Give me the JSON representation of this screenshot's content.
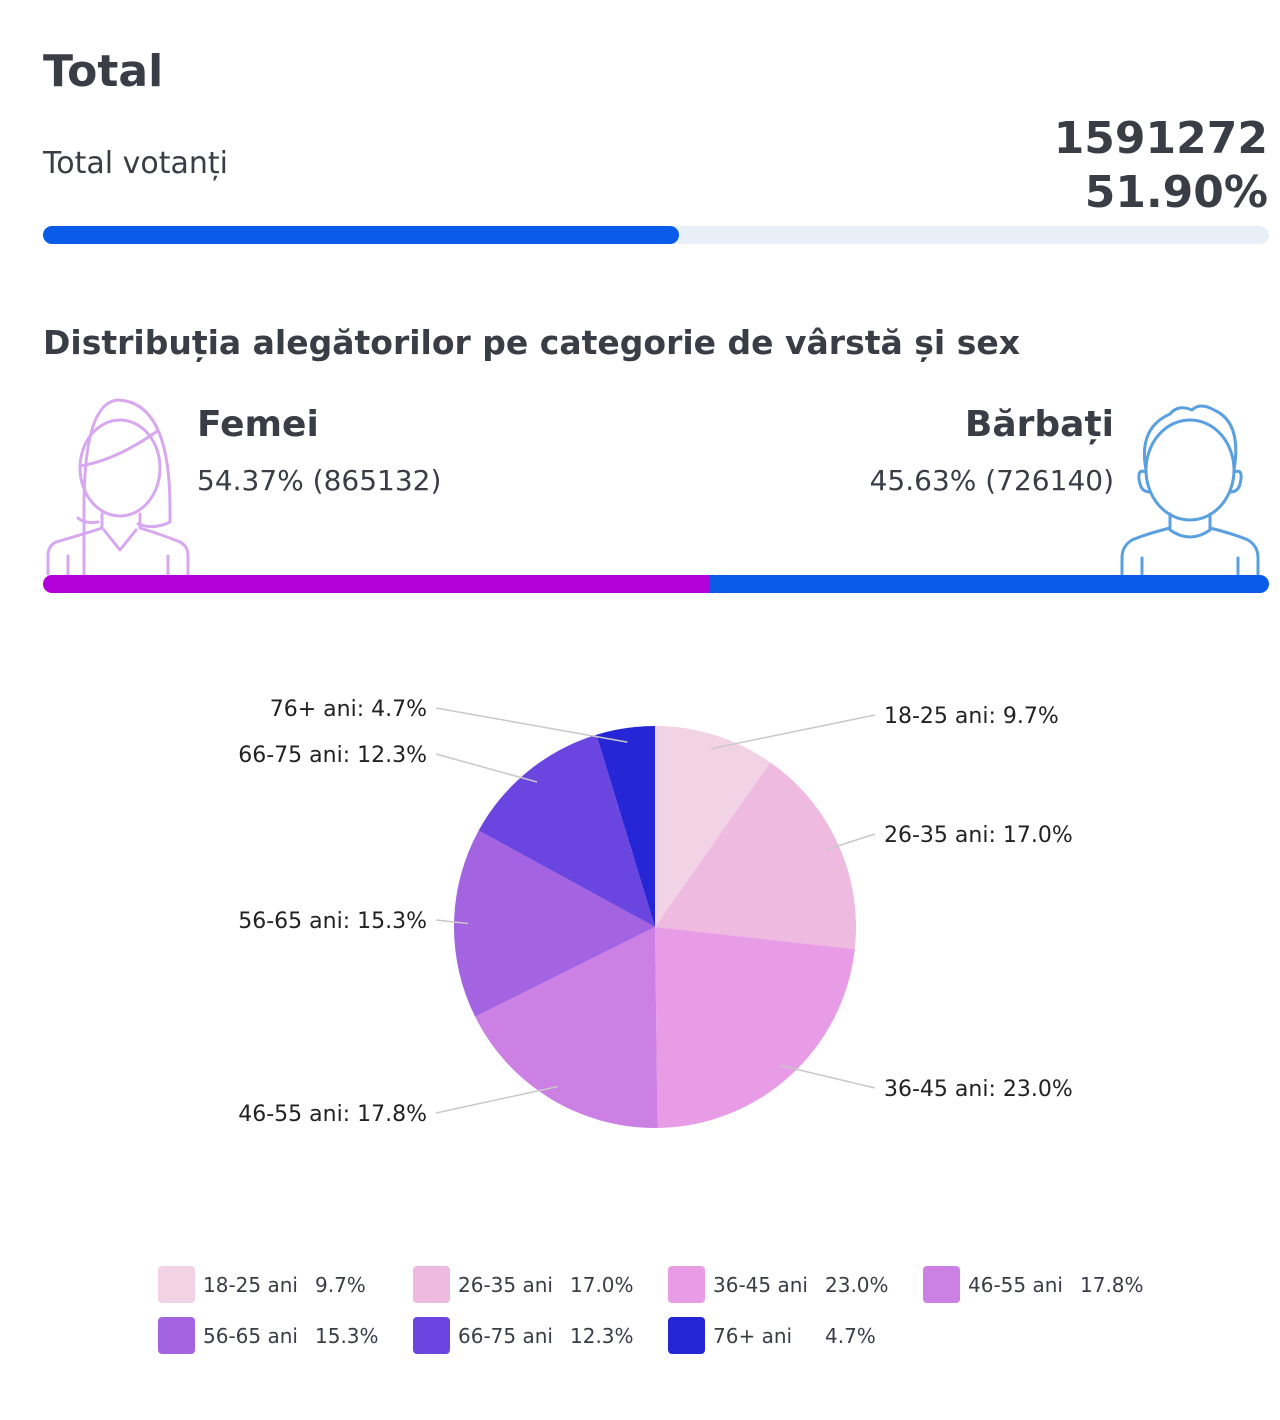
{
  "total": {
    "heading": "Total",
    "label": "Total votanți",
    "count": "1591272",
    "percent": "51.90%",
    "progress_fraction": 0.519,
    "bar_color": "#0a5ce8",
    "track_color": "#e9eff7"
  },
  "distribution": {
    "title": "Distribuția alegătorilor pe categorie de vârstă și sex",
    "women": {
      "label": "Femei",
      "stat": "54.37% (865132)",
      "share": 0.5437,
      "color": "#b300d9"
    },
    "men": {
      "label": "Bărbați",
      "stat": "45.63% (726140)",
      "share": 0.4563,
      "color": "#0a5ce8"
    }
  },
  "icons": {
    "woman": "woman-avatar-icon",
    "man": "man-avatar-icon"
  },
  "chart_data": {
    "type": "pie",
    "title": "",
    "slices": [
      {
        "label": "18-25 ani",
        "value": 9.7,
        "display": "9.7%",
        "color": "#f2d3e5"
      },
      {
        "label": "26-35 ani",
        "value": 17.0,
        "display": "17.0%",
        "color": "#efbadf"
      },
      {
        "label": "36-45 ani",
        "value": 23.0,
        "display": "23.0%",
        "color": "#e89ce6"
      },
      {
        "label": "46-55 ani",
        "value": 17.8,
        "display": "17.8%",
        "color": "#cd80e4"
      },
      {
        "label": "56-65 ani",
        "value": 15.3,
        "display": "15.3%",
        "color": "#a463e1"
      },
      {
        "label": "66-75 ani",
        "value": 12.3,
        "display": "12.3%",
        "color": "#6b45df"
      },
      {
        "label": "76+ ani",
        "value": 4.7,
        "display": "4.7%",
        "color": "#2626d6"
      }
    ],
    "legend_position": "bottom"
  }
}
